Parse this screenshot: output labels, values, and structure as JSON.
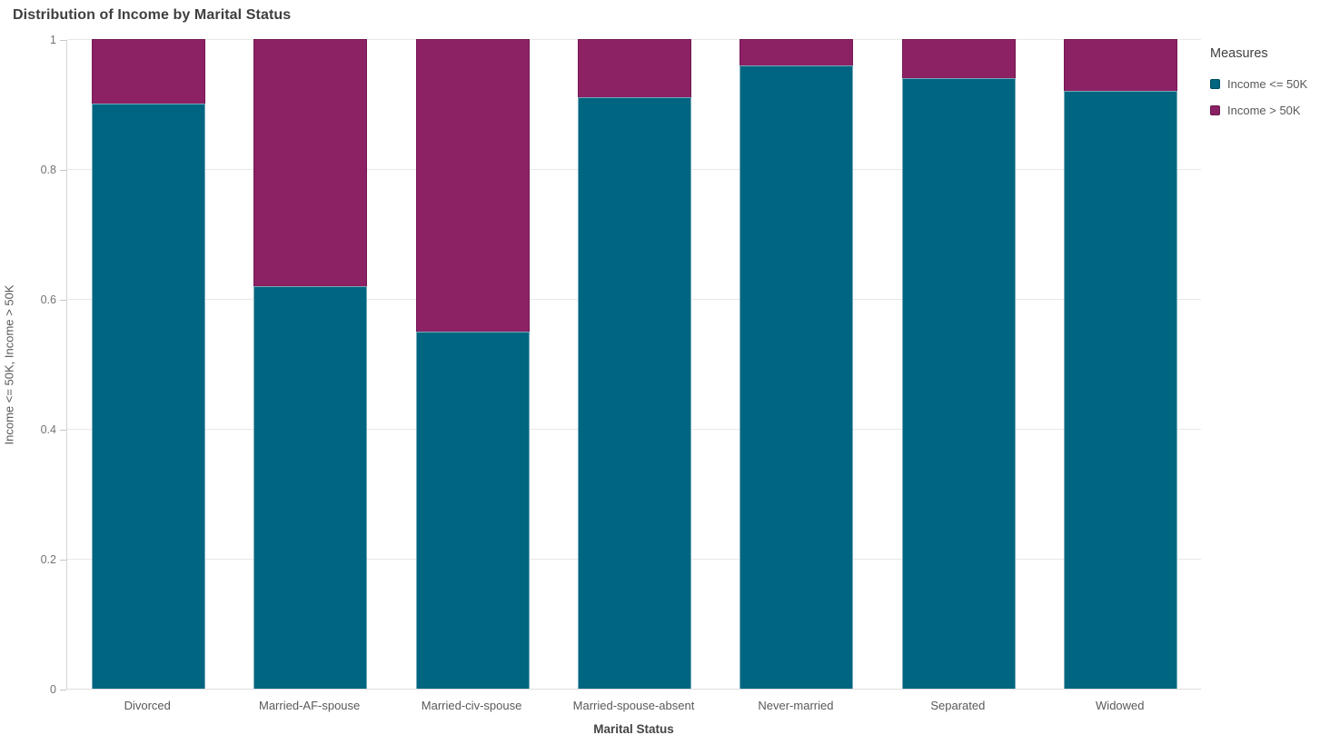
{
  "title": "Distribution of Income by Marital Status",
  "legend": {
    "title": "Measures",
    "position": "top-right"
  },
  "colors": {
    "income_le_50k": "#006580",
    "income_gt_50k": "#8c2164",
    "gridline": "#e8e8e8",
    "axis_line": "#d4d4d4",
    "tick_text": "#737373",
    "label_text": "#595959",
    "title_text": "#3f3f3f"
  },
  "chart_data": {
    "type": "bar",
    "stacked": true,
    "normalized": true,
    "title": "Distribution of Income by Marital Status",
    "xlabel": "Marital Status",
    "ylabel": "Income <= 50K, Income > 50K",
    "categories": [
      "Divorced",
      "Married-AF-spouse",
      "Married-civ-spouse",
      "Married-spouse-absent",
      "Never-married",
      "Separated",
      "Widowed"
    ],
    "series": [
      {
        "name": "Income <= 50K",
        "color": "#006580",
        "values": [
          0.9,
          0.62,
          0.55,
          0.91,
          0.96,
          0.94,
          0.92
        ]
      },
      {
        "name": "Income > 50K",
        "color": "#8c2164",
        "values": [
          0.1,
          0.38,
          0.45,
          0.09,
          0.04,
          0.06,
          0.08
        ]
      }
    ],
    "ylim": [
      0,
      1
    ],
    "yticks": [
      0,
      0.2,
      0.4,
      0.6,
      0.8,
      1
    ],
    "grid": true,
    "legend_position": "right"
  }
}
